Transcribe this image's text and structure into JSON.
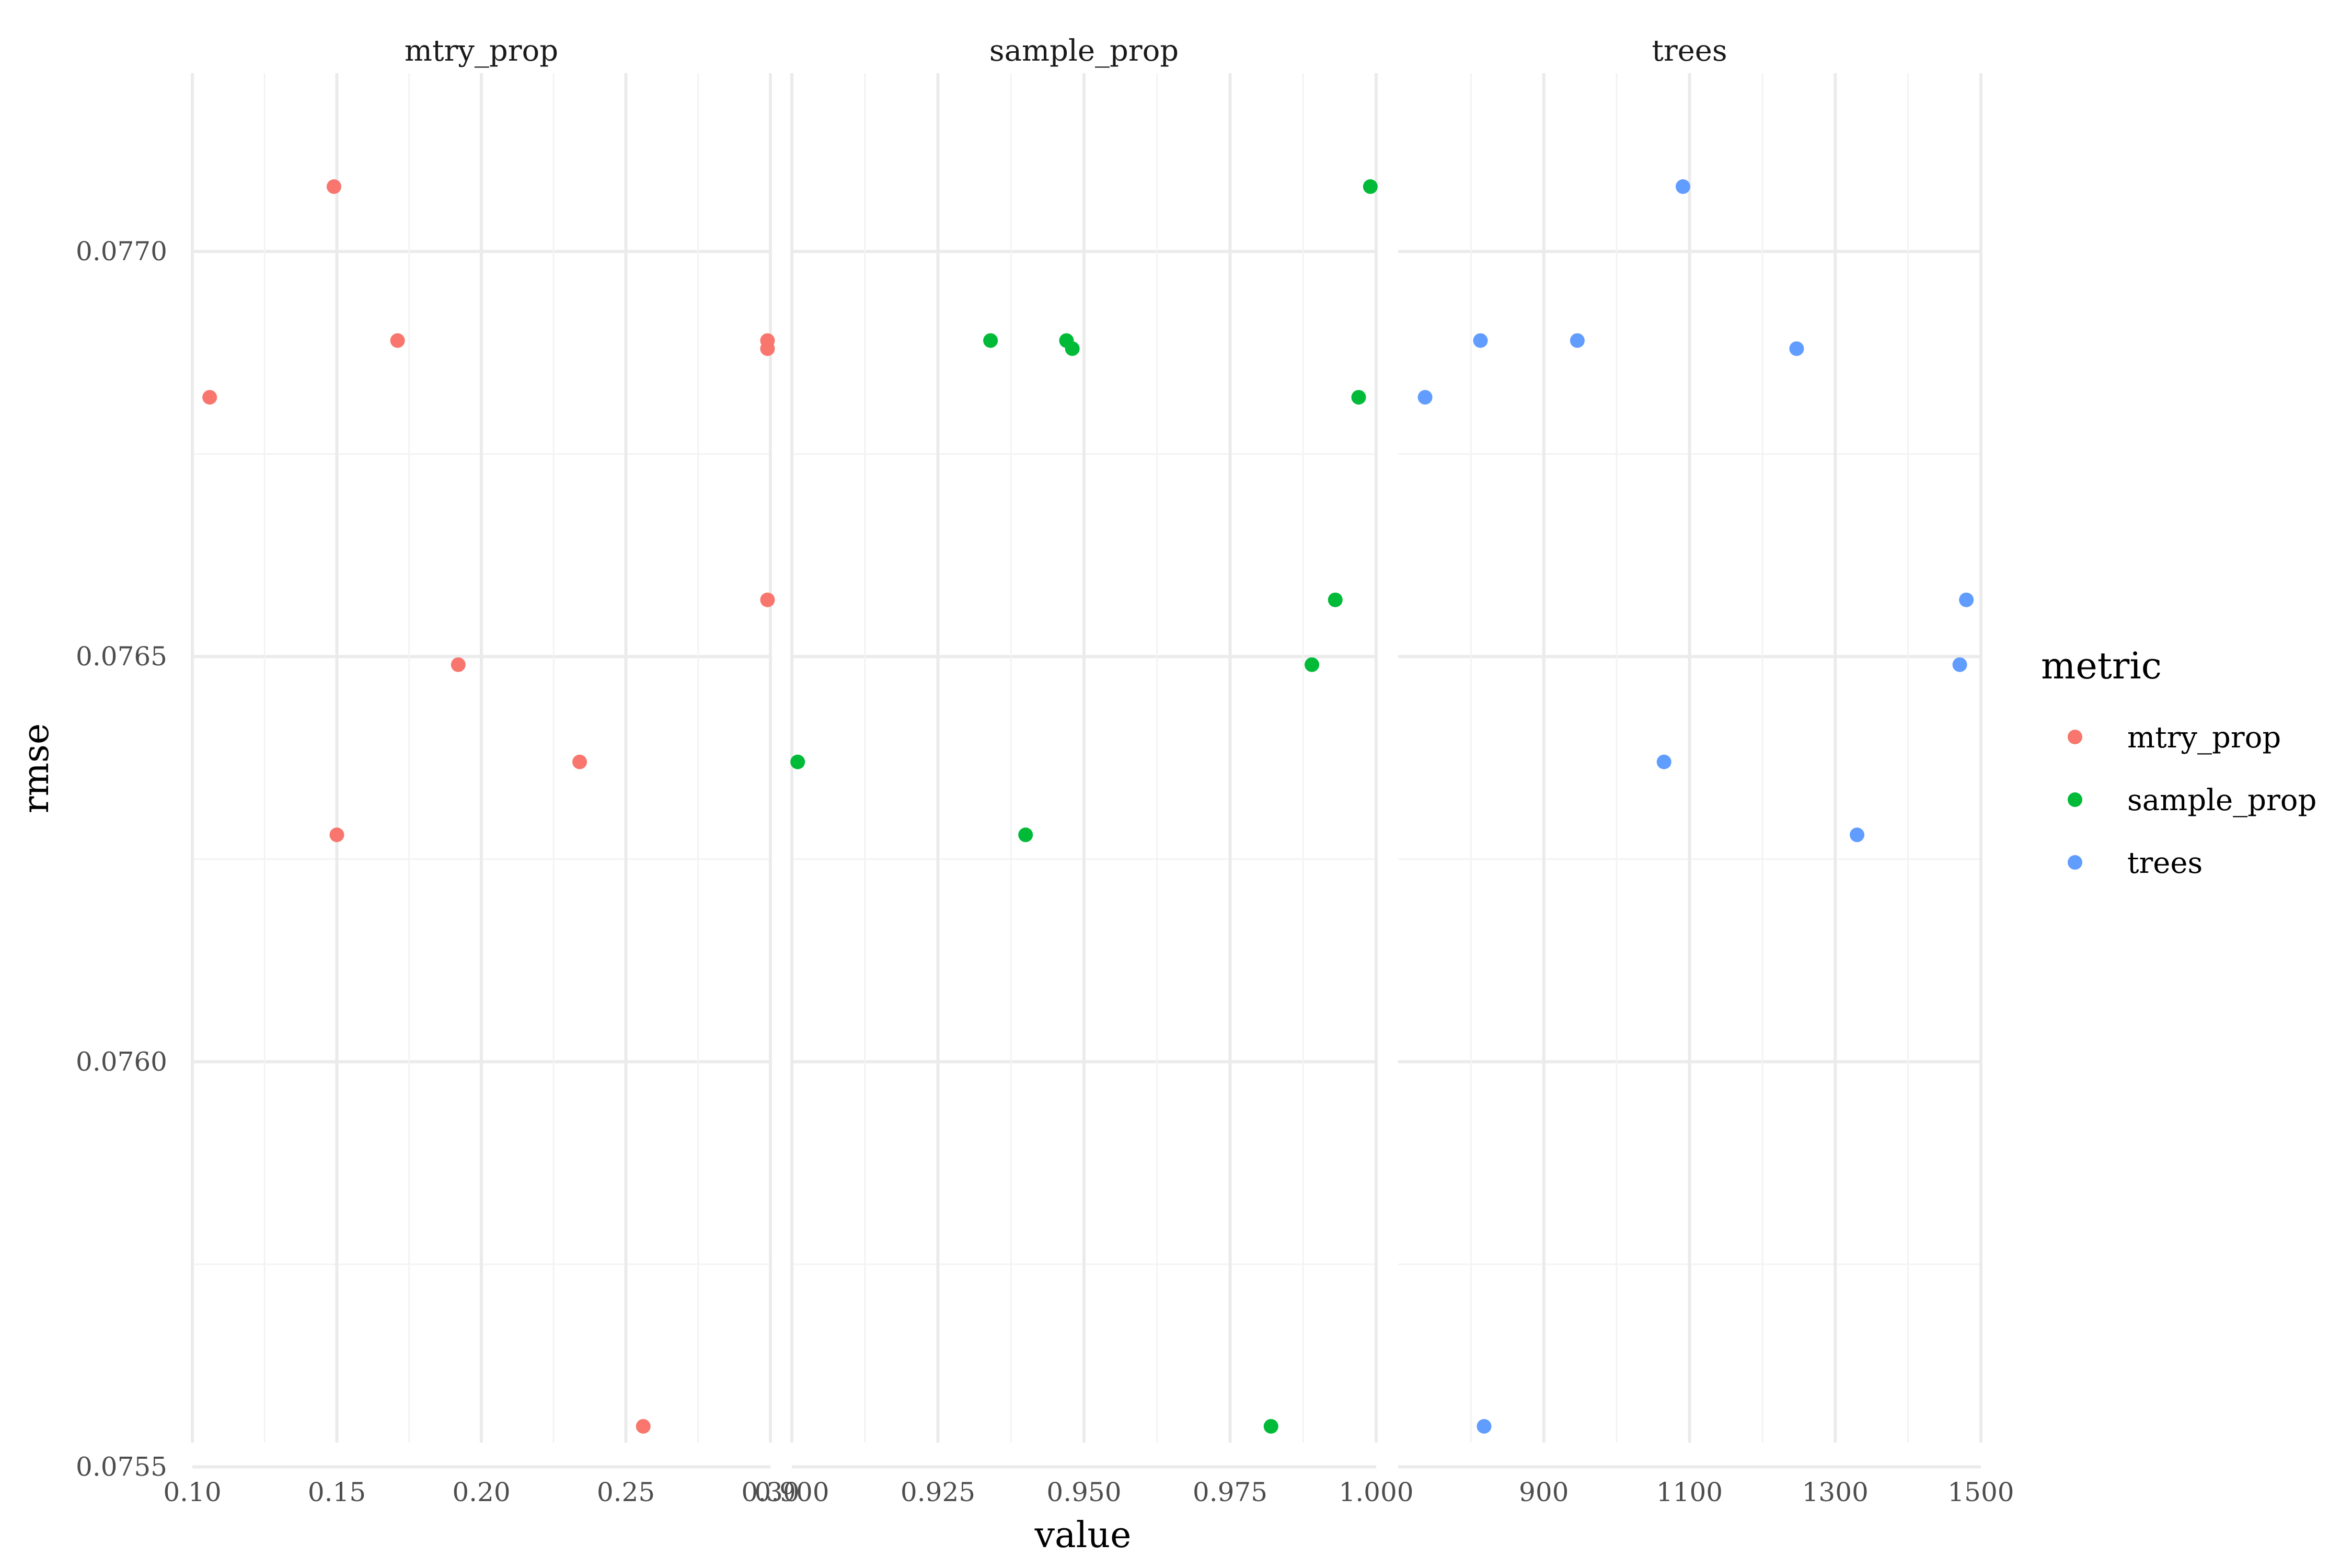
{
  "chart_data": {
    "type": "scatter",
    "xlabel": "value",
    "ylabel": "rmse",
    "ylim": [
      0.07553,
      0.07722
    ],
    "yticks": [
      0.0755,
      0.076,
      0.0765,
      0.077
    ],
    "ytick_labels": [
      "0.0755",
      "0.0760",
      "0.0765",
      "0.0770"
    ],
    "grid": true,
    "legend": {
      "title": "metric",
      "placement": "right",
      "entries": [
        {
          "name": "mtry_prop",
          "color": "#F8766D"
        },
        {
          "name": "sample_prop",
          "color": "#00BA38"
        },
        {
          "name": "trees",
          "color": "#619CFF"
        }
      ]
    },
    "facets": [
      {
        "title": "mtry_prop",
        "color": "#F8766D",
        "xlim": [
          0.1,
          0.3
        ],
        "xticks": [
          0.1,
          0.15,
          0.2,
          0.25,
          0.3
        ],
        "xtick_labels": [
          "0.10",
          "0.15",
          "0.20",
          "0.25",
          "0.30"
        ],
        "points": [
          {
            "x": 0.149,
            "y": 0.07708
          },
          {
            "x": 0.171,
            "y": 0.07689
          },
          {
            "x": 0.106,
            "y": 0.07682
          },
          {
            "x": 0.299,
            "y": 0.07689
          },
          {
            "x": 0.299,
            "y": 0.07688
          },
          {
            "x": 0.299,
            "y": 0.07657
          },
          {
            "x": 0.192,
            "y": 0.07649
          },
          {
            "x": 0.234,
            "y": 0.07637
          },
          {
            "x": 0.15,
            "y": 0.07628
          },
          {
            "x": 0.256,
            "y": 0.07555
          }
        ]
      },
      {
        "title": "sample_prop",
        "color": "#00BA38",
        "xlim": [
          0.9,
          1.0
        ],
        "xticks": [
          0.9,
          0.925,
          0.95,
          0.975,
          1.0
        ],
        "xtick_labels": [
          "0.900",
          "0.925",
          "0.950",
          "0.975",
          "1.000"
        ],
        "points": [
          {
            "x": 0.999,
            "y": 0.07708
          },
          {
            "x": 0.934,
            "y": 0.07689
          },
          {
            "x": 0.947,
            "y": 0.07689
          },
          {
            "x": 0.948,
            "y": 0.07688
          },
          {
            "x": 0.997,
            "y": 0.07682
          },
          {
            "x": 0.993,
            "y": 0.07657
          },
          {
            "x": 0.989,
            "y": 0.07649
          },
          {
            "x": 0.901,
            "y": 0.07637
          },
          {
            "x": 0.94,
            "y": 0.07628
          },
          {
            "x": 0.982,
            "y": 0.07555
          }
        ]
      },
      {
        "title": "trees",
        "color": "#619CFF",
        "xlim": [
          700,
          1500
        ],
        "xticks": [
          900,
          1100,
          1300,
          1500
        ],
        "xtick_labels": [
          "900",
          "1100",
          "1300",
          "1500"
        ],
        "points": [
          {
            "x": 1091,
            "y": 0.07708
          },
          {
            "x": 813,
            "y": 0.07689
          },
          {
            "x": 946,
            "y": 0.07689
          },
          {
            "x": 1247,
            "y": 0.07688
          },
          {
            "x": 737,
            "y": 0.07682
          },
          {
            "x": 1480,
            "y": 0.07657
          },
          {
            "x": 1471,
            "y": 0.07649
          },
          {
            "x": 1065,
            "y": 0.07637
          },
          {
            "x": 1330,
            "y": 0.07628
          },
          {
            "x": 818,
            "y": 0.07555
          }
        ]
      }
    ]
  }
}
